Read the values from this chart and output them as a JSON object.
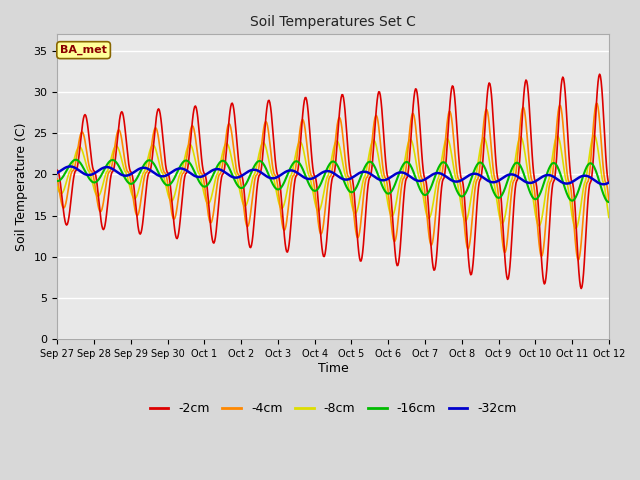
{
  "title": "Soil Temperatures Set C",
  "xlabel": "Time",
  "ylabel": "Soil Temperature (C)",
  "ylim": [
    0,
    37
  ],
  "yticks": [
    0,
    5,
    10,
    15,
    20,
    25,
    30,
    35
  ],
  "annotation": "BA_met",
  "legend_labels": [
    "-2cm",
    "-4cm",
    "-8cm",
    "-16cm",
    "-32cm"
  ],
  "legend_colors": [
    "#dd0000",
    "#ff8800",
    "#dddd00",
    "#00bb00",
    "#0000cc"
  ],
  "line_colors": {
    "-2cm": "#dd0000",
    "-4cm": "#ff8800",
    "-8cm": "#dddd00",
    "-16cm": "#00bb00",
    "-32cm": "#0000cc"
  },
  "x_tick_labels": [
    "Sep 27",
    "Sep 28",
    "Sep 29",
    "Sep 30",
    "Oct 1",
    "Oct 2",
    "Oct 3",
    "Oct 4",
    "Oct 5",
    "Oct 6",
    "Oct 7",
    "Oct 8",
    "Oct 9",
    "Oct 10",
    "Oct 11",
    "Oct 12"
  ],
  "bg_color": "#d8d8d8",
  "plot_bg_upper_color": "#e8e8e8",
  "plot_bg_lower_color": "#c8c8c8",
  "grid_color": "#ffffff",
  "n_days": 15,
  "pts_per_day": 48
}
